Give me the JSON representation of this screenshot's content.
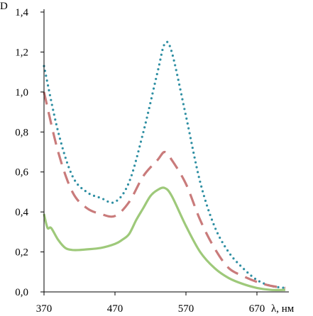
{
  "chart_data": {
    "type": "line",
    "ylabel": "D",
    "xlabel": "λ, нм",
    "xlim": [
      370,
      715
    ],
    "ylim": [
      0.0,
      1.4
    ],
    "x_ticks": [
      370,
      470,
      570,
      670
    ],
    "x_tick_labels": [
      "370",
      "470",
      "570",
      "670"
    ],
    "y_ticks": [
      0.0,
      0.2,
      0.4,
      0.6,
      0.8,
      1.0,
      1.2,
      1.4
    ],
    "y_tick_labels": [
      "0,0",
      "0,2",
      "0,4",
      "0,6",
      "0,8",
      "1,0",
      "1,2",
      "1,4"
    ],
    "grid": false,
    "legend": "none",
    "series": [
      {
        "style": "dotted",
        "color": "#2f8fa3",
        "x": [
          370,
          390,
          410,
          430,
          450,
          470,
          490,
          510,
          530,
          540,
          550,
          570,
          590,
          610,
          630,
          650,
          670,
          690,
          710
        ],
        "y": [
          1.13,
          0.8,
          0.58,
          0.5,
          0.47,
          0.45,
          0.55,
          0.8,
          1.1,
          1.24,
          1.2,
          0.88,
          0.55,
          0.33,
          0.2,
          0.12,
          0.06,
          0.03,
          0.02
        ]
      },
      {
        "style": "dashed",
        "color": "#c97b7b",
        "x": [
          370,
          390,
          410,
          430,
          450,
          470,
          490,
          510,
          530,
          540,
          550,
          570,
          590,
          610,
          630,
          650,
          670,
          690,
          710
        ],
        "y": [
          1.0,
          0.7,
          0.5,
          0.42,
          0.39,
          0.38,
          0.45,
          0.58,
          0.66,
          0.7,
          0.66,
          0.54,
          0.36,
          0.22,
          0.12,
          0.08,
          0.05,
          0.03,
          0.02
        ]
      },
      {
        "style": "solid",
        "color": "#9ec97a",
        "x": [
          370,
          375,
          380,
          390,
          400,
          410,
          420,
          450,
          470,
          480,
          490,
          500,
          510,
          520,
          530,
          540,
          550,
          570,
          590,
          610,
          630,
          650,
          670,
          690,
          710
        ],
        "y": [
          0.39,
          0.32,
          0.32,
          0.26,
          0.22,
          0.21,
          0.21,
          0.22,
          0.24,
          0.26,
          0.29,
          0.36,
          0.42,
          0.48,
          0.51,
          0.52,
          0.48,
          0.33,
          0.2,
          0.12,
          0.07,
          0.04,
          0.02,
          0.01,
          0.01
        ]
      }
    ]
  }
}
